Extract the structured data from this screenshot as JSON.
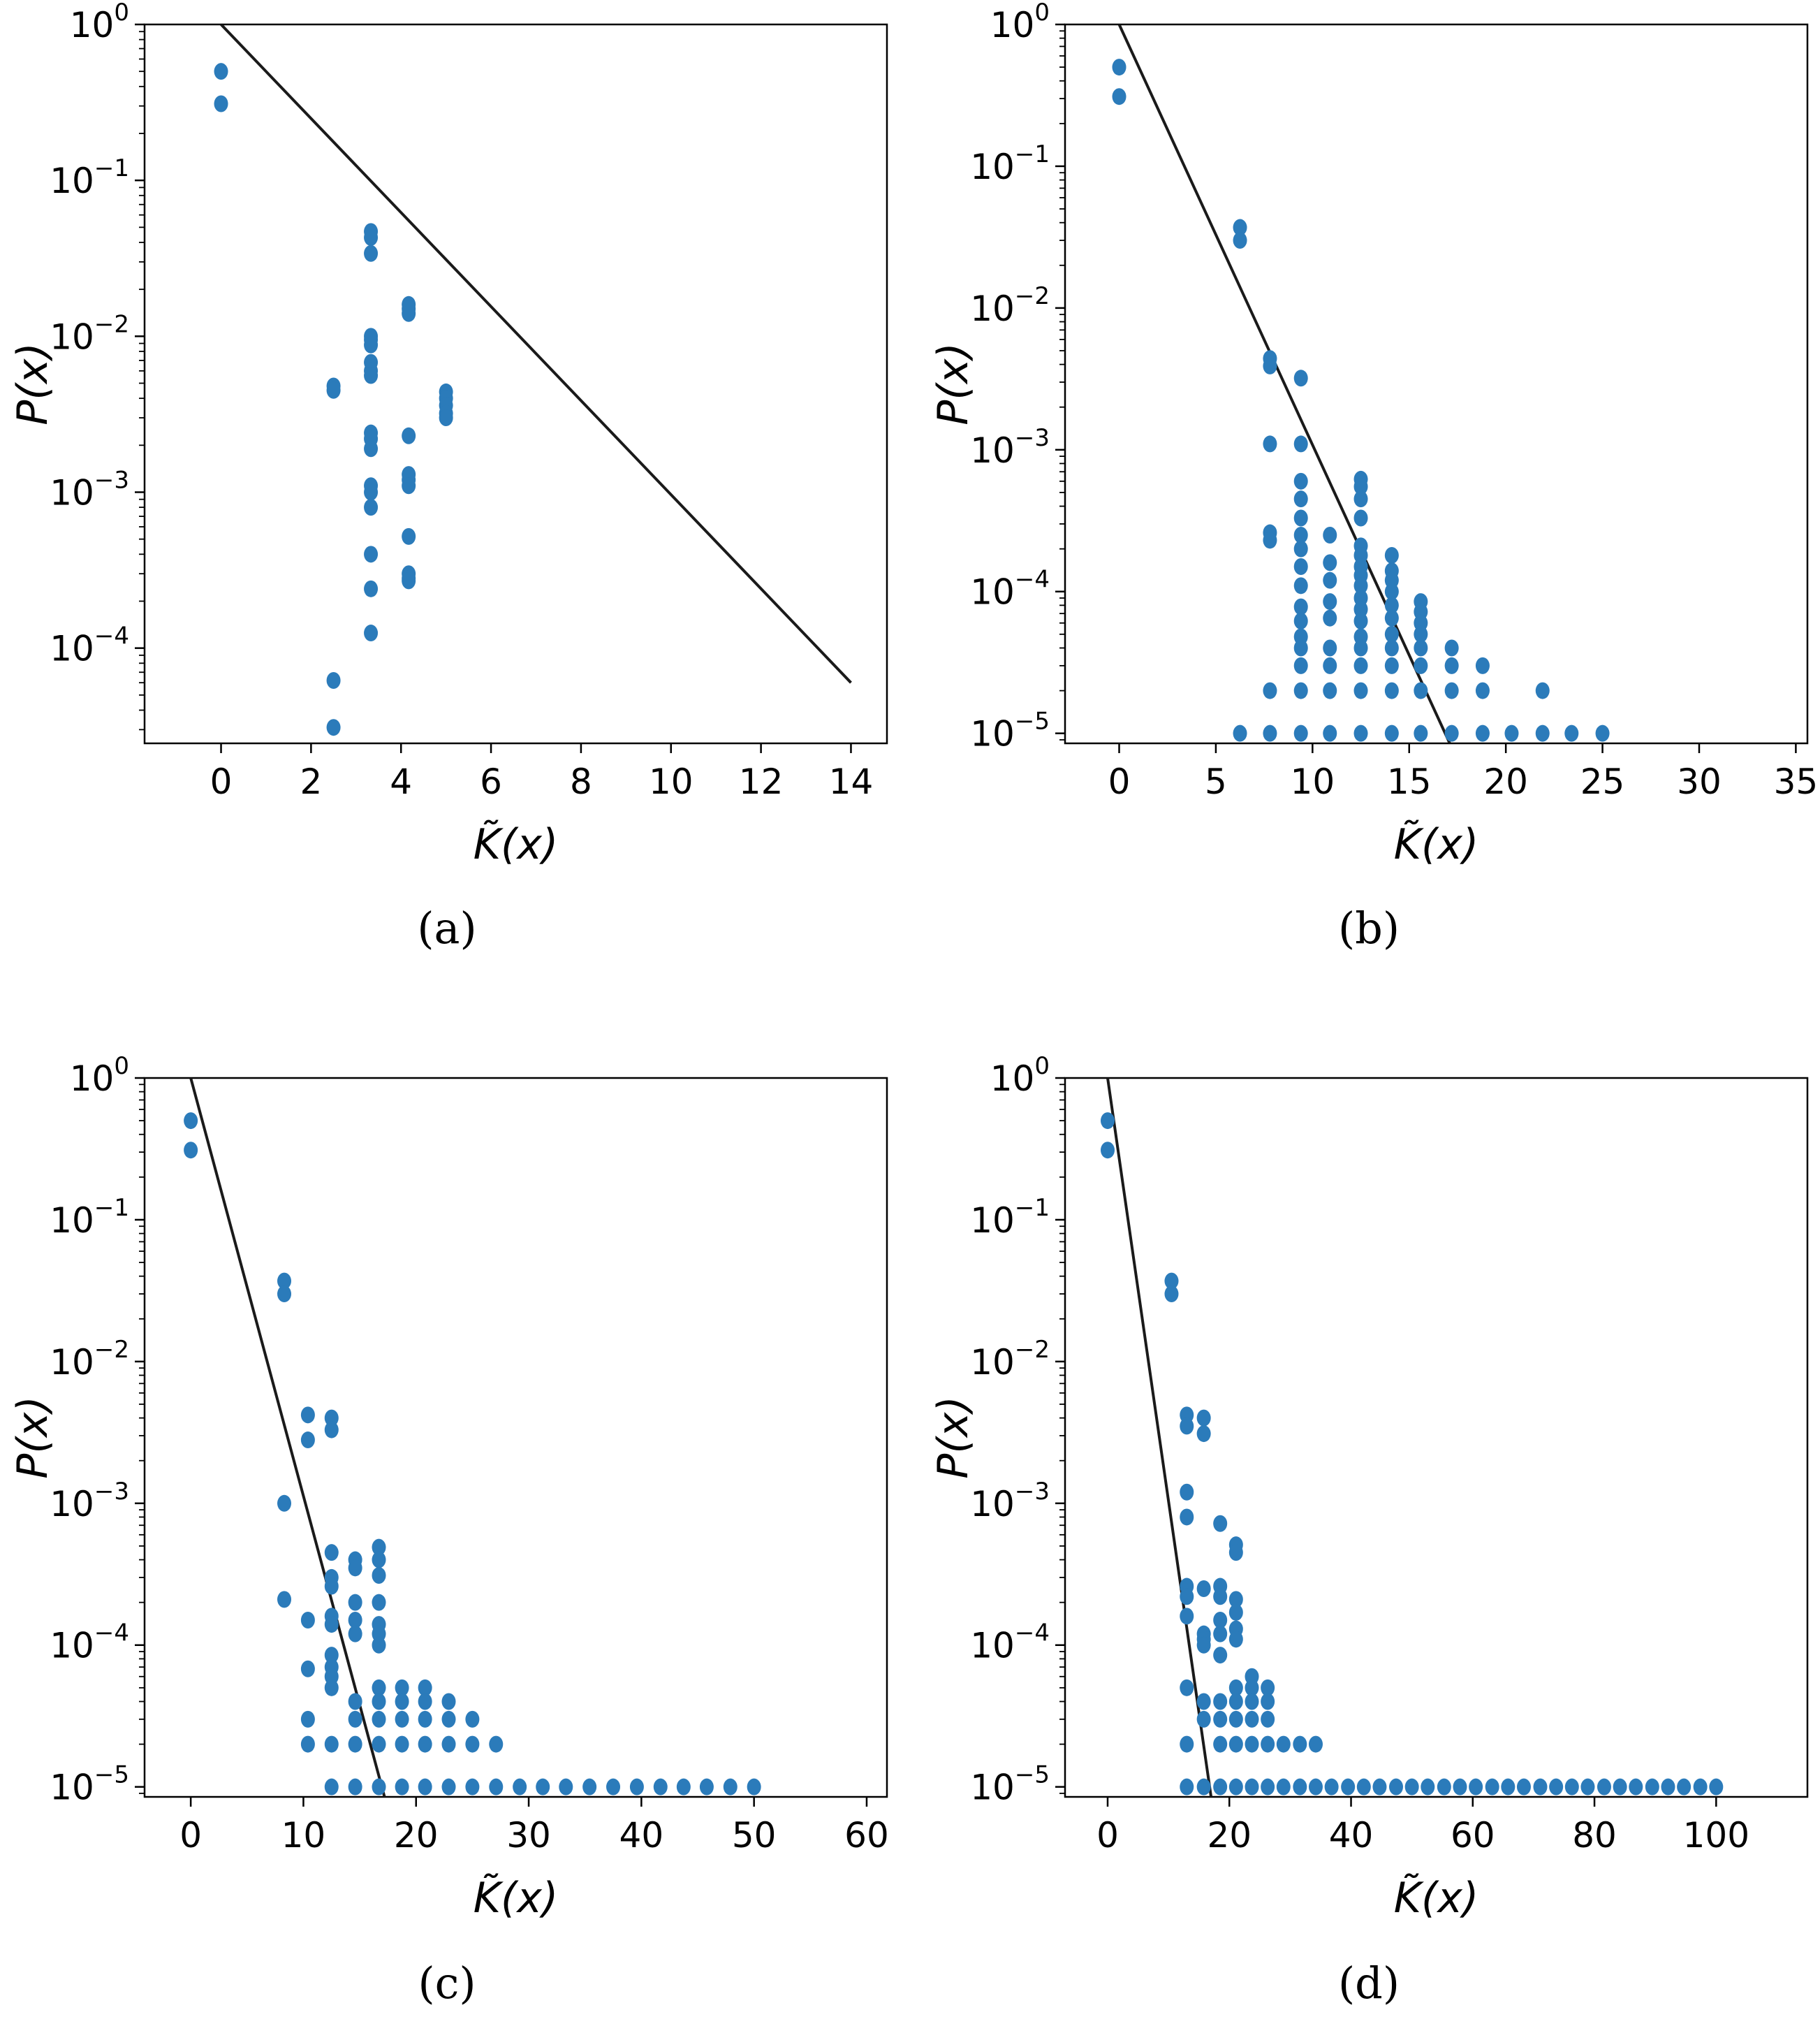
{
  "figure": {
    "colors": {
      "points": "#2b7bba",
      "line": "#1a1a1a",
      "frame": "#000000"
    }
  },
  "chart_data": [
    {
      "id": "a",
      "type": "scatter",
      "caption": "(a)",
      "ylabel": "P(x)",
      "xlabel": "K̃(x)",
      "yscale": "log",
      "xlim": [
        -1.7,
        14.8
      ],
      "ylim": [
        2.45e-05,
        1.0
      ],
      "xticks": [
        0,
        2,
        4,
        6,
        8,
        10,
        12,
        14
      ],
      "yticks": [
        {
          "base": "10",
          "exp": "0",
          "value": 1
        },
        {
          "base": "10",
          "exp": "−1",
          "value": 0.1
        },
        {
          "base": "10",
          "exp": "−2",
          "value": 0.01
        },
        {
          "base": "10",
          "exp": "−3",
          "value": 0.001
        },
        {
          "base": "10",
          "exp": "−4",
          "value": 0.0001
        }
      ],
      "fit_line": [
        [
          0,
          1.0
        ],
        [
          14,
          6e-05
        ]
      ],
      "points": [
        [
          0,
          0.5
        ],
        [
          0,
          0.31
        ],
        [
          2.5,
          0.0048
        ],
        [
          2.5,
          0.0045
        ],
        [
          2.5,
          6.2e-05
        ],
        [
          2.5,
          3.1e-05
        ],
        [
          3.33,
          0.047
        ],
        [
          3.33,
          0.043
        ],
        [
          3.33,
          0.034
        ],
        [
          3.33,
          0.01
        ],
        [
          3.33,
          0.0095
        ],
        [
          3.33,
          0.0088
        ],
        [
          3.33,
          0.0068
        ],
        [
          3.33,
          0.006
        ],
        [
          3.33,
          0.0056
        ],
        [
          3.33,
          0.0024
        ],
        [
          3.33,
          0.0022
        ],
        [
          3.33,
          0.0019
        ],
        [
          3.33,
          0.0011
        ],
        [
          3.33,
          0.001
        ],
        [
          3.33,
          0.0008
        ],
        [
          3.33,
          0.0004
        ],
        [
          3.33,
          0.00024
        ],
        [
          3.33,
          0.000125
        ],
        [
          4.17,
          0.016
        ],
        [
          4.17,
          0.015
        ],
        [
          4.17,
          0.014
        ],
        [
          4.17,
          0.0023
        ],
        [
          4.17,
          0.0013
        ],
        [
          4.17,
          0.0012
        ],
        [
          4.17,
          0.0011
        ],
        [
          4.17,
          0.00052
        ],
        [
          4.17,
          0.0003
        ],
        [
          4.17,
          0.00028
        ],
        [
          4.17,
          0.00027
        ],
        [
          5.0,
          0.0044
        ],
        [
          5.0,
          0.004
        ],
        [
          5.0,
          0.0036
        ],
        [
          5.0,
          0.0032
        ],
        [
          5.0,
          0.003
        ]
      ]
    },
    {
      "id": "b",
      "type": "scatter",
      "caption": "(b)",
      "ylabel": "P(x)",
      "xlabel": "K̃(x)",
      "yscale": "log",
      "xlim": [
        -2.8,
        35.6
      ],
      "ylim": [
        8.5e-06,
        1.0
      ],
      "xticks": [
        0,
        5,
        10,
        15,
        20,
        25,
        30,
        35
      ],
      "yticks": [
        {
          "base": "10",
          "exp": "0",
          "value": 1
        },
        {
          "base": "10",
          "exp": "−1",
          "value": 0.1
        },
        {
          "base": "10",
          "exp": "−2",
          "value": 0.01
        },
        {
          "base": "10",
          "exp": "−3",
          "value": 0.001
        },
        {
          "base": "10",
          "exp": "−4",
          "value": 0.0001
        },
        {
          "base": "10",
          "exp": "−5",
          "value": 1e-05
        }
      ],
      "fit_line": [
        [
          0,
          1.0
        ],
        [
          17.1,
          8.5e-06
        ]
      ],
      "columns": [
        {
          "x": 0,
          "values": [
            0.5,
            0.31
          ]
        },
        {
          "x": 6.25,
          "values": [
            0.037,
            0.03,
            1e-05
          ]
        },
        {
          "x": 7.8,
          "values": [
            0.0044,
            0.0039,
            0.0011,
            0.00026,
            0.00023,
            2e-05,
            1e-05
          ]
        },
        {
          "x": 9.4,
          "values": [
            0.0032,
            0.0011,
            0.0006,
            0.00045,
            0.00033,
            0.00025,
            0.0002,
            0.00015,
            0.00011,
            7.8e-05,
            6.2e-05,
            4.8e-05,
            4e-05,
            3e-05,
            2e-05,
            1e-05
          ]
        },
        {
          "x": 10.9,
          "values": [
            0.00025,
            0.00016,
            0.00012,
            8.5e-05,
            6.5e-05,
            4e-05,
            3e-05,
            2e-05,
            1e-05
          ]
        },
        {
          "x": 12.5,
          "values": [
            0.00062,
            0.00055,
            0.00045,
            0.00033,
            0.00021,
            0.00018,
            0.00015,
            0.00013,
            0.00011,
            9e-05,
            7.5e-05,
            6.2e-05,
            4.8e-05,
            4e-05,
            3e-05,
            2e-05,
            1e-05
          ]
        },
        {
          "x": 14.1,
          "values": [
            0.00018,
            0.00014,
            0.00012,
            0.0001,
            8e-05,
            6.5e-05,
            5e-05,
            4e-05,
            3e-05,
            2e-05,
            1e-05
          ]
        },
        {
          "x": 15.6,
          "values": [
            8.5e-05,
            7.2e-05,
            6e-05,
            5e-05,
            4e-05,
            3e-05,
            2e-05,
            1e-05
          ]
        },
        {
          "x": 17.2,
          "values": [
            4e-05,
            3e-05,
            2e-05,
            1e-05
          ]
        },
        {
          "x": 18.8,
          "values": [
            3e-05,
            2e-05,
            1e-05
          ]
        },
        {
          "x": 20.3,
          "values": [
            1e-05
          ]
        },
        {
          "x": 21.9,
          "values": [
            2e-05,
            1e-05
          ]
        },
        {
          "x": 23.4,
          "values": [
            1e-05
          ]
        },
        {
          "x": 25.0,
          "values": [
            1e-05
          ]
        }
      ]
    },
    {
      "id": "c",
      "type": "scatter",
      "caption": "(c)",
      "ylabel": "P(x)",
      "xlabel": "K̃(x)",
      "yscale": "log",
      "xlim": [
        -4.1,
        61.8
      ],
      "ylim": [
        8.5e-06,
        1.0
      ],
      "xticks": [
        0,
        10,
        20,
        30,
        40,
        50,
        60
      ],
      "yticks": [
        {
          "base": "10",
          "exp": "0",
          "value": 1
        },
        {
          "base": "10",
          "exp": "−1",
          "value": 0.1
        },
        {
          "base": "10",
          "exp": "−2",
          "value": 0.01
        },
        {
          "base": "10",
          "exp": "−3",
          "value": 0.001
        },
        {
          "base": "10",
          "exp": "−4",
          "value": 0.0001
        },
        {
          "base": "10",
          "exp": "−5",
          "value": 1e-05
        }
      ],
      "fit_line": [
        [
          0,
          1.0
        ],
        [
          17.2,
          8.5e-06
        ]
      ],
      "columns": [
        {
          "x": 0,
          "values": [
            0.5,
            0.31
          ]
        },
        {
          "x": 8.3,
          "values": [
            0.037,
            0.03,
            0.001,
            0.00021
          ]
        },
        {
          "x": 10.4,
          "values": [
            0.0042,
            0.0028,
            0.00015,
            6.8e-05,
            3e-05,
            2e-05
          ]
        },
        {
          "x": 12.5,
          "values": [
            0.004,
            0.0033,
            0.00045,
            0.0003,
            0.00026,
            0.00016,
            0.00014,
            8.5e-05,
            7e-05,
            6e-05,
            5e-05,
            2e-05,
            1e-05
          ]
        },
        {
          "x": 14.6,
          "values": [
            0.0004,
            0.00035,
            0.0002,
            0.00015,
            0.00012,
            4e-05,
            3e-05,
            2e-05,
            1e-05
          ]
        },
        {
          "x": 16.7,
          "values": [
            0.00049,
            0.0004,
            0.00031,
            0.0002,
            0.00014,
            0.00012,
            0.0001,
            5e-05,
            4e-05,
            3e-05,
            2e-05,
            1e-05
          ]
        },
        {
          "x": 18.75,
          "values": [
            5e-05,
            4e-05,
            3e-05,
            2e-05,
            1e-05
          ]
        },
        {
          "x": 20.8,
          "values": [
            5e-05,
            4e-05,
            3e-05,
            2e-05,
            1e-05
          ]
        },
        {
          "x": 22.9,
          "values": [
            4e-05,
            3e-05,
            2e-05,
            1e-05
          ]
        },
        {
          "x": 25.0,
          "values": [
            3e-05,
            2e-05,
            1e-05
          ]
        },
        {
          "x": 27.1,
          "values": [
            2e-05,
            1e-05
          ]
        },
        {
          "x": 29.2,
          "values": [
            1e-05
          ]
        },
        {
          "x": 31.25,
          "values": [
            1e-05
          ]
        },
        {
          "x": 33.3,
          "values": [
            1e-05
          ]
        },
        {
          "x": 35.4,
          "values": [
            1e-05
          ]
        },
        {
          "x": 37.5,
          "values": [
            1e-05
          ]
        },
        {
          "x": 39.6,
          "values": [
            1e-05
          ]
        },
        {
          "x": 41.7,
          "values": [
            1e-05
          ]
        },
        {
          "x": 43.75,
          "values": [
            1e-05
          ]
        },
        {
          "x": 45.8,
          "values": [
            1e-05
          ]
        },
        {
          "x": 47.9,
          "values": [
            1e-05
          ]
        },
        {
          "x": 50.0,
          "values": [
            1e-05
          ]
        }
      ]
    },
    {
      "id": "d",
      "type": "scatter",
      "caption": "(d)",
      "ylabel": "P(x)",
      "xlabel": "K̃(x)",
      "yscale": "log",
      "xlim": [
        -7.0,
        115.0
      ],
      "ylim": [
        8.5e-06,
        1.0
      ],
      "xticks": [
        0,
        20,
        40,
        60,
        80,
        100
      ],
      "yticks": [
        {
          "base": "10",
          "exp": "0",
          "value": 1
        },
        {
          "base": "10",
          "exp": "−1",
          "value": 0.1
        },
        {
          "base": "10",
          "exp": "−2",
          "value": 0.01
        },
        {
          "base": "10",
          "exp": "−3",
          "value": 0.001
        },
        {
          "base": "10",
          "exp": "−4",
          "value": 0.0001
        },
        {
          "base": "10",
          "exp": "−5",
          "value": 1e-05
        }
      ],
      "fit_line": [
        [
          0,
          1.0
        ],
        [
          17.0,
          8.5e-06
        ]
      ],
      "columns": [
        {
          "x": 0,
          "values": [
            0.5,
            0.31
          ]
        },
        {
          "x": 10.5,
          "values": [
            0.037,
            0.03
          ]
        },
        {
          "x": 13.0,
          "values": [
            0.0042,
            0.0035,
            0.0012,
            0.0008,
            0.00026,
            0.00022,
            0.00016,
            5e-05,
            2e-05,
            1e-05
          ]
        },
        {
          "x": 15.8,
          "values": [
            0.004,
            0.0031,
            0.00025,
            0.00012,
            0.00011,
            0.0001,
            4e-05,
            3e-05,
            1e-05
          ]
        },
        {
          "x": 18.5,
          "values": [
            0.00072,
            0.00026,
            0.00022,
            0.00015,
            0.00012,
            8.5e-05,
            4e-05,
            3e-05,
            2e-05,
            1e-05
          ]
        },
        {
          "x": 21.1,
          "values": [
            0.00051,
            0.00045,
            0.00021,
            0.00017,
            0.00013,
            0.00011,
            5e-05,
            4e-05,
            3e-05,
            2e-05,
            1e-05
          ]
        },
        {
          "x": 23.7,
          "values": [
            6e-05,
            5e-05,
            4e-05,
            3e-05,
            2e-05,
            1e-05
          ]
        },
        {
          "x": 26.3,
          "values": [
            5e-05,
            4e-05,
            3e-05,
            2e-05,
            1e-05
          ]
        },
        {
          "x": 28.9,
          "values": [
            2e-05,
            1e-05
          ]
        },
        {
          "x": 31.6,
          "values": [
            2e-05,
            1e-05
          ]
        },
        {
          "x": 34.2,
          "values": [
            2e-05,
            1e-05
          ]
        },
        {
          "x": 36.8,
          "values": [
            1e-05
          ]
        },
        {
          "x": 39.5,
          "values": [
            1e-05
          ]
        },
        {
          "x": 42.1,
          "values": [
            1e-05
          ]
        },
        {
          "x": 44.7,
          "values": [
            1e-05
          ]
        },
        {
          "x": 47.4,
          "values": [
            1e-05
          ]
        },
        {
          "x": 50.0,
          "values": [
            1e-05
          ]
        },
        {
          "x": 52.6,
          "values": [
            1e-05
          ]
        },
        {
          "x": 55.3,
          "values": [
            1e-05
          ]
        },
        {
          "x": 57.9,
          "values": [
            1e-05
          ]
        },
        {
          "x": 60.5,
          "values": [
            1e-05
          ]
        },
        {
          "x": 63.2,
          "values": [
            1e-05
          ]
        },
        {
          "x": 65.8,
          "values": [
            1e-05
          ]
        },
        {
          "x": 68.4,
          "values": [
            1e-05
          ]
        },
        {
          "x": 71.1,
          "values": [
            1e-05
          ]
        },
        {
          "x": 73.7,
          "values": [
            1e-05
          ]
        },
        {
          "x": 76.3,
          "values": [
            1e-05
          ]
        },
        {
          "x": 78.9,
          "values": [
            1e-05
          ]
        },
        {
          "x": 81.6,
          "values": [
            1e-05
          ]
        },
        {
          "x": 84.2,
          "values": [
            1e-05
          ]
        },
        {
          "x": 86.8,
          "values": [
            1e-05
          ]
        },
        {
          "x": 89.5,
          "values": [
            1e-05
          ]
        },
        {
          "x": 92.1,
          "values": [
            1e-05
          ]
        },
        {
          "x": 94.7,
          "values": [
            1e-05
          ]
        },
        {
          "x": 97.4,
          "values": [
            1e-05
          ]
        },
        {
          "x": 100.0,
          "values": [
            1e-05
          ]
        }
      ]
    }
  ]
}
